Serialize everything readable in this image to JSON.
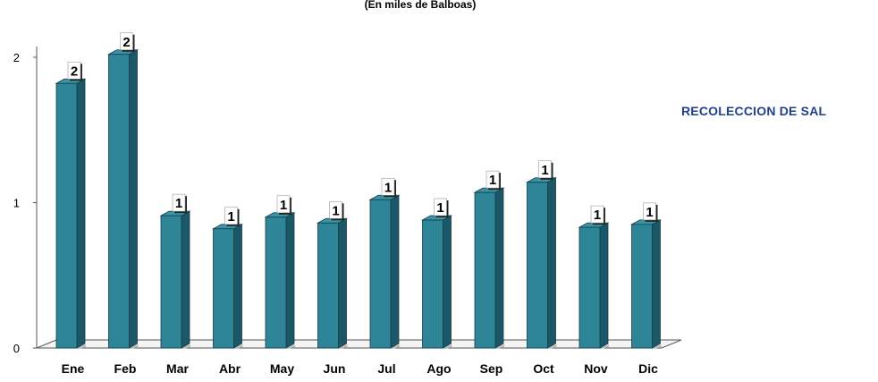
{
  "chart_data": {
    "type": "bar",
    "subtitle": "(En miles de Balboas)",
    "categories": [
      "Ene",
      "Feb",
      "Mar",
      "Abr",
      "May",
      "Jun",
      "Jul",
      "Ago",
      "Sep",
      "Oct",
      "Nov",
      "Dic"
    ],
    "series": [
      {
        "name": "RECOLECCION DE SAL",
        "values": [
          1.82,
          2.02,
          0.91,
          0.82,
          0.9,
          0.86,
          1.02,
          0.88,
          1.07,
          1.14,
          0.83,
          0.85
        ],
        "data_labels": [
          "2",
          "2",
          "1",
          "1",
          "1",
          "1",
          "1",
          "1",
          "1",
          "1",
          "1",
          "1"
        ]
      }
    ],
    "y_ticks": [
      "0",
      "1",
      "2"
    ],
    "ylim": [
      0,
      2.05
    ],
    "grid": false,
    "legend_position": "right",
    "colors": {
      "bar_front": "#2e8597",
      "bar_side": "#1b5766",
      "bar_top": "#3a94a6",
      "legend_text": "#1f3f8f"
    }
  }
}
